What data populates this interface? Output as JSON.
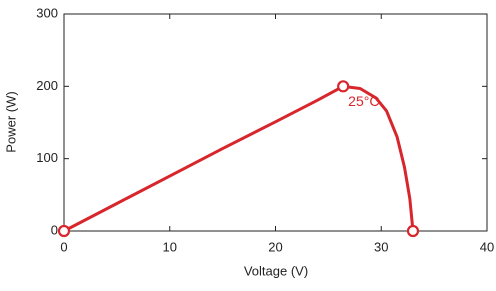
{
  "chart_data": {
    "type": "line",
    "xlabel": "Voltage (V)",
    "ylabel": "Power (W)",
    "xlim": [
      0,
      40
    ],
    "ylim": [
      0,
      300
    ],
    "xticks": [
      0,
      10,
      20,
      30,
      40
    ],
    "yticks": [
      0,
      100,
      200,
      300
    ],
    "grid": false,
    "series": [
      {
        "color": "#d7262c",
        "x": [
          0,
          5,
          10,
          15,
          20,
          24,
          26.4,
          28,
          29.5,
          30.5,
          31.5,
          32.2,
          32.7,
          33
        ],
        "values": [
          0,
          38,
          76,
          114,
          151,
          181,
          200,
          197,
          184,
          166,
          130,
          88,
          45,
          0
        ]
      },
      {
        "color": "#d7262c",
        "marker": "circle",
        "x": [
          0,
          26.4,
          33
        ],
        "values": [
          0,
          200,
          0
        ]
      }
    ],
    "annotations": [
      "25°C"
    ]
  }
}
